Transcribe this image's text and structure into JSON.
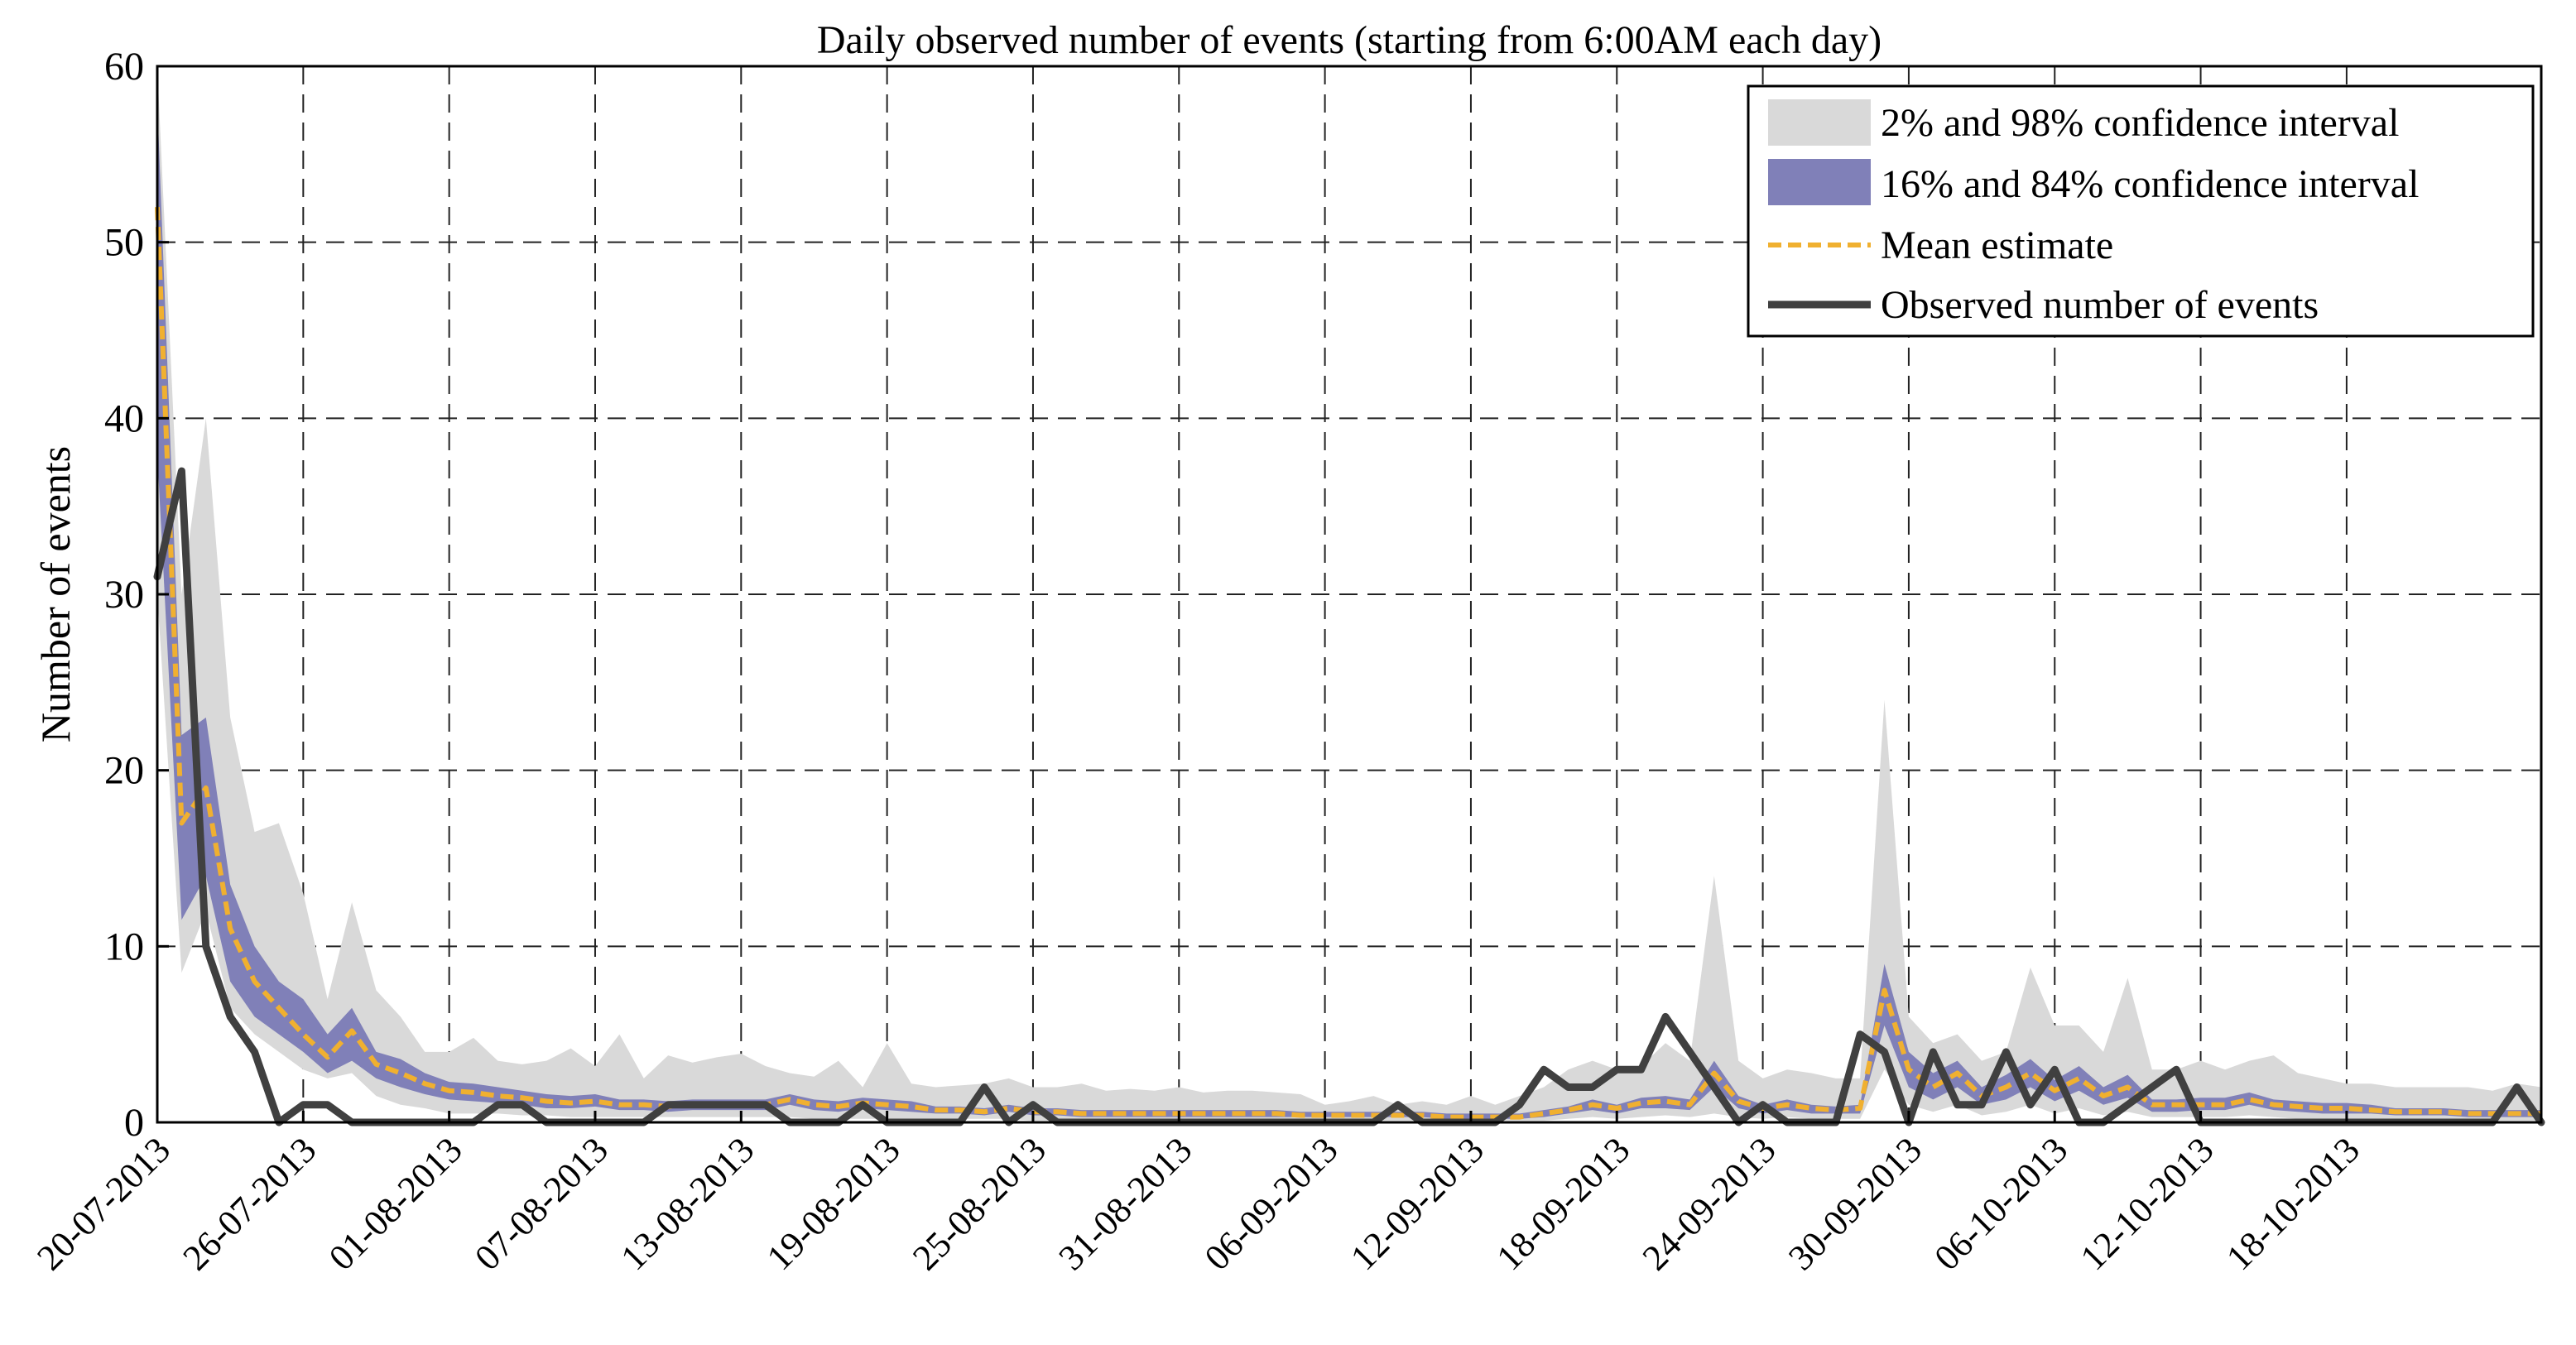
{
  "chart_data": {
    "type": "line",
    "title": "Daily observed number of events (starting from 6:00AM each day)",
    "xlabel": "",
    "ylabel": "Number of events",
    "ylim": [
      0,
      60
    ],
    "yticks": [
      0,
      10,
      20,
      30,
      40,
      50,
      60
    ],
    "grid": true,
    "legend_position": "top-right",
    "colors": {
      "band_2_98": "#d9d9d9",
      "band_16_84": "#8080b8",
      "mean": "#f0b030",
      "observed": "#404040"
    },
    "day_offsets": [
      0,
      1,
      2,
      3,
      4,
      5,
      6,
      7,
      8,
      9,
      10,
      11,
      12,
      13,
      14,
      15,
      16,
      17,
      18,
      19,
      20,
      21,
      22,
      23,
      24,
      25,
      26,
      27,
      28,
      29,
      30,
      31,
      32,
      33,
      34,
      35,
      36,
      37,
      38,
      39,
      40,
      41,
      42,
      43,
      44,
      45,
      46,
      47,
      48,
      49,
      50,
      51,
      52,
      53,
      54,
      55,
      56,
      57,
      58,
      59,
      60,
      61,
      62,
      63,
      64,
      65,
      66,
      67,
      68,
      69,
      70,
      71,
      72,
      73,
      74,
      75,
      76,
      77,
      78,
      79,
      80,
      81,
      82,
      83,
      84,
      85,
      86,
      87,
      88,
      89,
      90,
      91,
      92,
      93,
      94,
      95,
      96,
      97,
      98
    ],
    "x_tick_labels": [
      "20-07-2013",
      "26-07-2013",
      "01-08-2013",
      "07-08-2013",
      "13-08-2013",
      "19-08-2013",
      "25-08-2013",
      "31-08-2013",
      "06-09-2013",
      "12-09-2013",
      "18-09-2013",
      "24-09-2013",
      "30-09-2013",
      "06-10-2013",
      "12-10-2013",
      "18-10-2013"
    ],
    "x_tick_offsets": [
      0,
      6,
      12,
      18,
      24,
      30,
      36,
      42,
      48,
      54,
      60,
      66,
      72,
      78,
      84,
      90
    ],
    "series": [
      {
        "name": "Observed number of events",
        "values": [
          31,
          37,
          10,
          6,
          4,
          0,
          1,
          1,
          0,
          0,
          0,
          0,
          0,
          0,
          1,
          1,
          0,
          0,
          0,
          0,
          0,
          1,
          1,
          1,
          1,
          1,
          0,
          0,
          0,
          1,
          0,
          0,
          0,
          0,
          2,
          0,
          1,
          0,
          0,
          0,
          0,
          0,
          0,
          0,
          0,
          0,
          0,
          0,
          0,
          0,
          0,
          1,
          0,
          0,
          0,
          0,
          1,
          3,
          2,
          2,
          3,
          3,
          6,
          4,
          2,
          0,
          1,
          0,
          0,
          0,
          5,
          4,
          0,
          4,
          1,
          1,
          4,
          1,
          3,
          0,
          0,
          1,
          2,
          3,
          0,
          0,
          0,
          0,
          0,
          0,
          0,
          0,
          0,
          0,
          0,
          0,
          0,
          2,
          0
        ]
      },
      {
        "name": "Mean estimate",
        "values": [
          52,
          17,
          19,
          11,
          8,
          6.5,
          5,
          3.7,
          5.2,
          3.3,
          2.8,
          2.2,
          1.8,
          1.7,
          1.5,
          1.4,
          1.2,
          1.1,
          1.2,
          1.0,
          1.0,
          0.9,
          1.0,
          1.0,
          1.0,
          1.0,
          1.3,
          1.0,
          0.9,
          1.1,
          1.0,
          0.9,
          0.7,
          0.7,
          0.6,
          0.8,
          0.6,
          0.6,
          0.5,
          0.5,
          0.5,
          0.5,
          0.5,
          0.5,
          0.5,
          0.5,
          0.5,
          0.4,
          0.4,
          0.4,
          0.4,
          0.4,
          0.4,
          0.3,
          0.3,
          0.3,
          0.3,
          0.5,
          0.7,
          1.0,
          0.8,
          1.1,
          1.2,
          1.0,
          2.8,
          1.2,
          0.8,
          1.0,
          0.8,
          0.7,
          0.8,
          7.5,
          3.0,
          2.0,
          2.8,
          1.5,
          2.0,
          2.8,
          1.8,
          2.5,
          1.5,
          2.0,
          1.0,
          1.0,
          1.0,
          1.0,
          1.3,
          1.0,
          0.9,
          0.8,
          0.8,
          0.7,
          0.6,
          0.6,
          0.6,
          0.5,
          0.5,
          0.5,
          0.5
        ]
      },
      {
        "name": "16% and 84% confidence interval",
        "lower": [
          38,
          11.5,
          14,
          8,
          6,
          5,
          4,
          2.8,
          3.5,
          2.5,
          2.0,
          1.6,
          1.3,
          1.2,
          1.1,
          1.0,
          0.8,
          0.8,
          0.9,
          0.7,
          0.7,
          0.6,
          0.7,
          0.7,
          0.7,
          0.7,
          1.0,
          0.7,
          0.6,
          0.8,
          0.7,
          0.6,
          0.5,
          0.5,
          0.4,
          0.6,
          0.4,
          0.4,
          0.3,
          0.3,
          0.3,
          0.3,
          0.3,
          0.3,
          0.3,
          0.3,
          0.3,
          0.3,
          0.3,
          0.3,
          0.3,
          0.3,
          0.3,
          0.2,
          0.2,
          0.2,
          0.2,
          0.3,
          0.5,
          0.7,
          0.5,
          0.8,
          0.8,
          0.7,
          2.0,
          0.8,
          0.5,
          0.7,
          0.5,
          0.5,
          0.5,
          5.5,
          2.0,
          1.3,
          2.0,
          1.0,
          1.3,
          2.0,
          1.2,
          1.8,
          1.0,
          1.4,
          0.6,
          0.6,
          0.7,
          0.7,
          1.0,
          0.7,
          0.6,
          0.5,
          0.5,
          0.5,
          0.4,
          0.4,
          0.4,
          0.3,
          0.3,
          0.3,
          0.3
        ],
        "upper": [
          58,
          22,
          23,
          13.5,
          10,
          8,
          7,
          5,
          6.5,
          4,
          3.6,
          2.8,
          2.3,
          2.2,
          2.0,
          1.8,
          1.6,
          1.5,
          1.6,
          1.3,
          1.3,
          1.2,
          1.3,
          1.3,
          1.3,
          1.3,
          1.6,
          1.3,
          1.2,
          1.4,
          1.3,
          1.2,
          0.9,
          0.9,
          0.8,
          1.0,
          0.8,
          0.8,
          0.7,
          0.7,
          0.7,
          0.7,
          0.7,
          0.7,
          0.7,
          0.7,
          0.7,
          0.6,
          0.6,
          0.6,
          0.6,
          0.6,
          0.6,
          0.5,
          0.5,
          0.5,
          0.5,
          0.7,
          0.9,
          1.3,
          1.0,
          1.4,
          1.5,
          1.3,
          3.5,
          1.5,
          1.0,
          1.3,
          1.0,
          0.9,
          1.0,
          9.0,
          4.0,
          2.8,
          3.5,
          2.0,
          2.7,
          3.6,
          2.4,
          3.2,
          2.0,
          2.7,
          1.3,
          1.3,
          1.4,
          1.4,
          1.7,
          1.3,
          1.2,
          1.1,
          1.1,
          1.0,
          0.8,
          0.8,
          0.8,
          0.7,
          0.7,
          0.7,
          0.7
        ]
      },
      {
        "name": "2% and 98% confidence interval",
        "lower": [
          30,
          8.5,
          12,
          6.5,
          5,
          4,
          3,
          2.5,
          2.8,
          1.5,
          1.0,
          0.8,
          0.5,
          0.5,
          0.5,
          0.4,
          0.4,
          0.3,
          0.3,
          0.3,
          0.3,
          0.3,
          0.3,
          0.3,
          0.3,
          0.3,
          0.3,
          0.2,
          0.2,
          0.2,
          0.2,
          0.2,
          0.2,
          0.2,
          0.2,
          0.2,
          0.1,
          0.1,
          0.1,
          0.1,
          0.1,
          0.1,
          0.1,
          0.1,
          0.1,
          0.1,
          0.1,
          0.1,
          0.1,
          0.1,
          0.1,
          0.1,
          0.1,
          0.1,
          0.1,
          0.1,
          0.1,
          0.1,
          0.2,
          0.3,
          0.2,
          0.3,
          0.4,
          0.3,
          0.5,
          0.3,
          0.2,
          0.3,
          0.2,
          0.2,
          0.2,
          3.0,
          1.0,
          0.6,
          1.0,
          0.4,
          0.6,
          1.0,
          0.5,
          0.8,
          0.4,
          0.6,
          0.3,
          0.3,
          0.3,
          0.3,
          0.4,
          0.3,
          0.2,
          0.2,
          0.2,
          0.2,
          0.1,
          0.1,
          0.1,
          0.1,
          0.1,
          0.1,
          0.1
        ],
        "upper": [
          60,
          30,
          40,
          23,
          16.5,
          17,
          13,
          7,
          12.5,
          7.5,
          6,
          4,
          4,
          4.8,
          3.5,
          3.3,
          3.5,
          4.2,
          3.2,
          5,
          2.5,
          3.8,
          3.4,
          3.7,
          3.9,
          3.2,
          2.8,
          2.6,
          3.5,
          2,
          4.5,
          2.2,
          2,
          2.1,
          2.2,
          2.5,
          2.0,
          2.0,
          2.2,
          1.8,
          1.9,
          1.8,
          2.0,
          1.7,
          1.8,
          1.8,
          1.7,
          1.6,
          1.0,
          1.2,
          1.5,
          1.0,
          1.2,
          1.0,
          1.5,
          1.0,
          1.5,
          2.0,
          3.0,
          3.5,
          3.0,
          3.2,
          4.5,
          3.5,
          14,
          3.5,
          2.5,
          3.0,
          2.8,
          2.5,
          2.5,
          24,
          6.0,
          4.5,
          5.0,
          3.5,
          4.0,
          8.8,
          5.5,
          5.5,
          4.0,
          8.2,
          3.0,
          3.0,
          3.5,
          3.0,
          3.5,
          3.8,
          2.8,
          2.5,
          2.2,
          2.2,
          2.0,
          2.0,
          2.0,
          2.0,
          1.8,
          2.2,
          2.0
        ]
      }
    ]
  }
}
